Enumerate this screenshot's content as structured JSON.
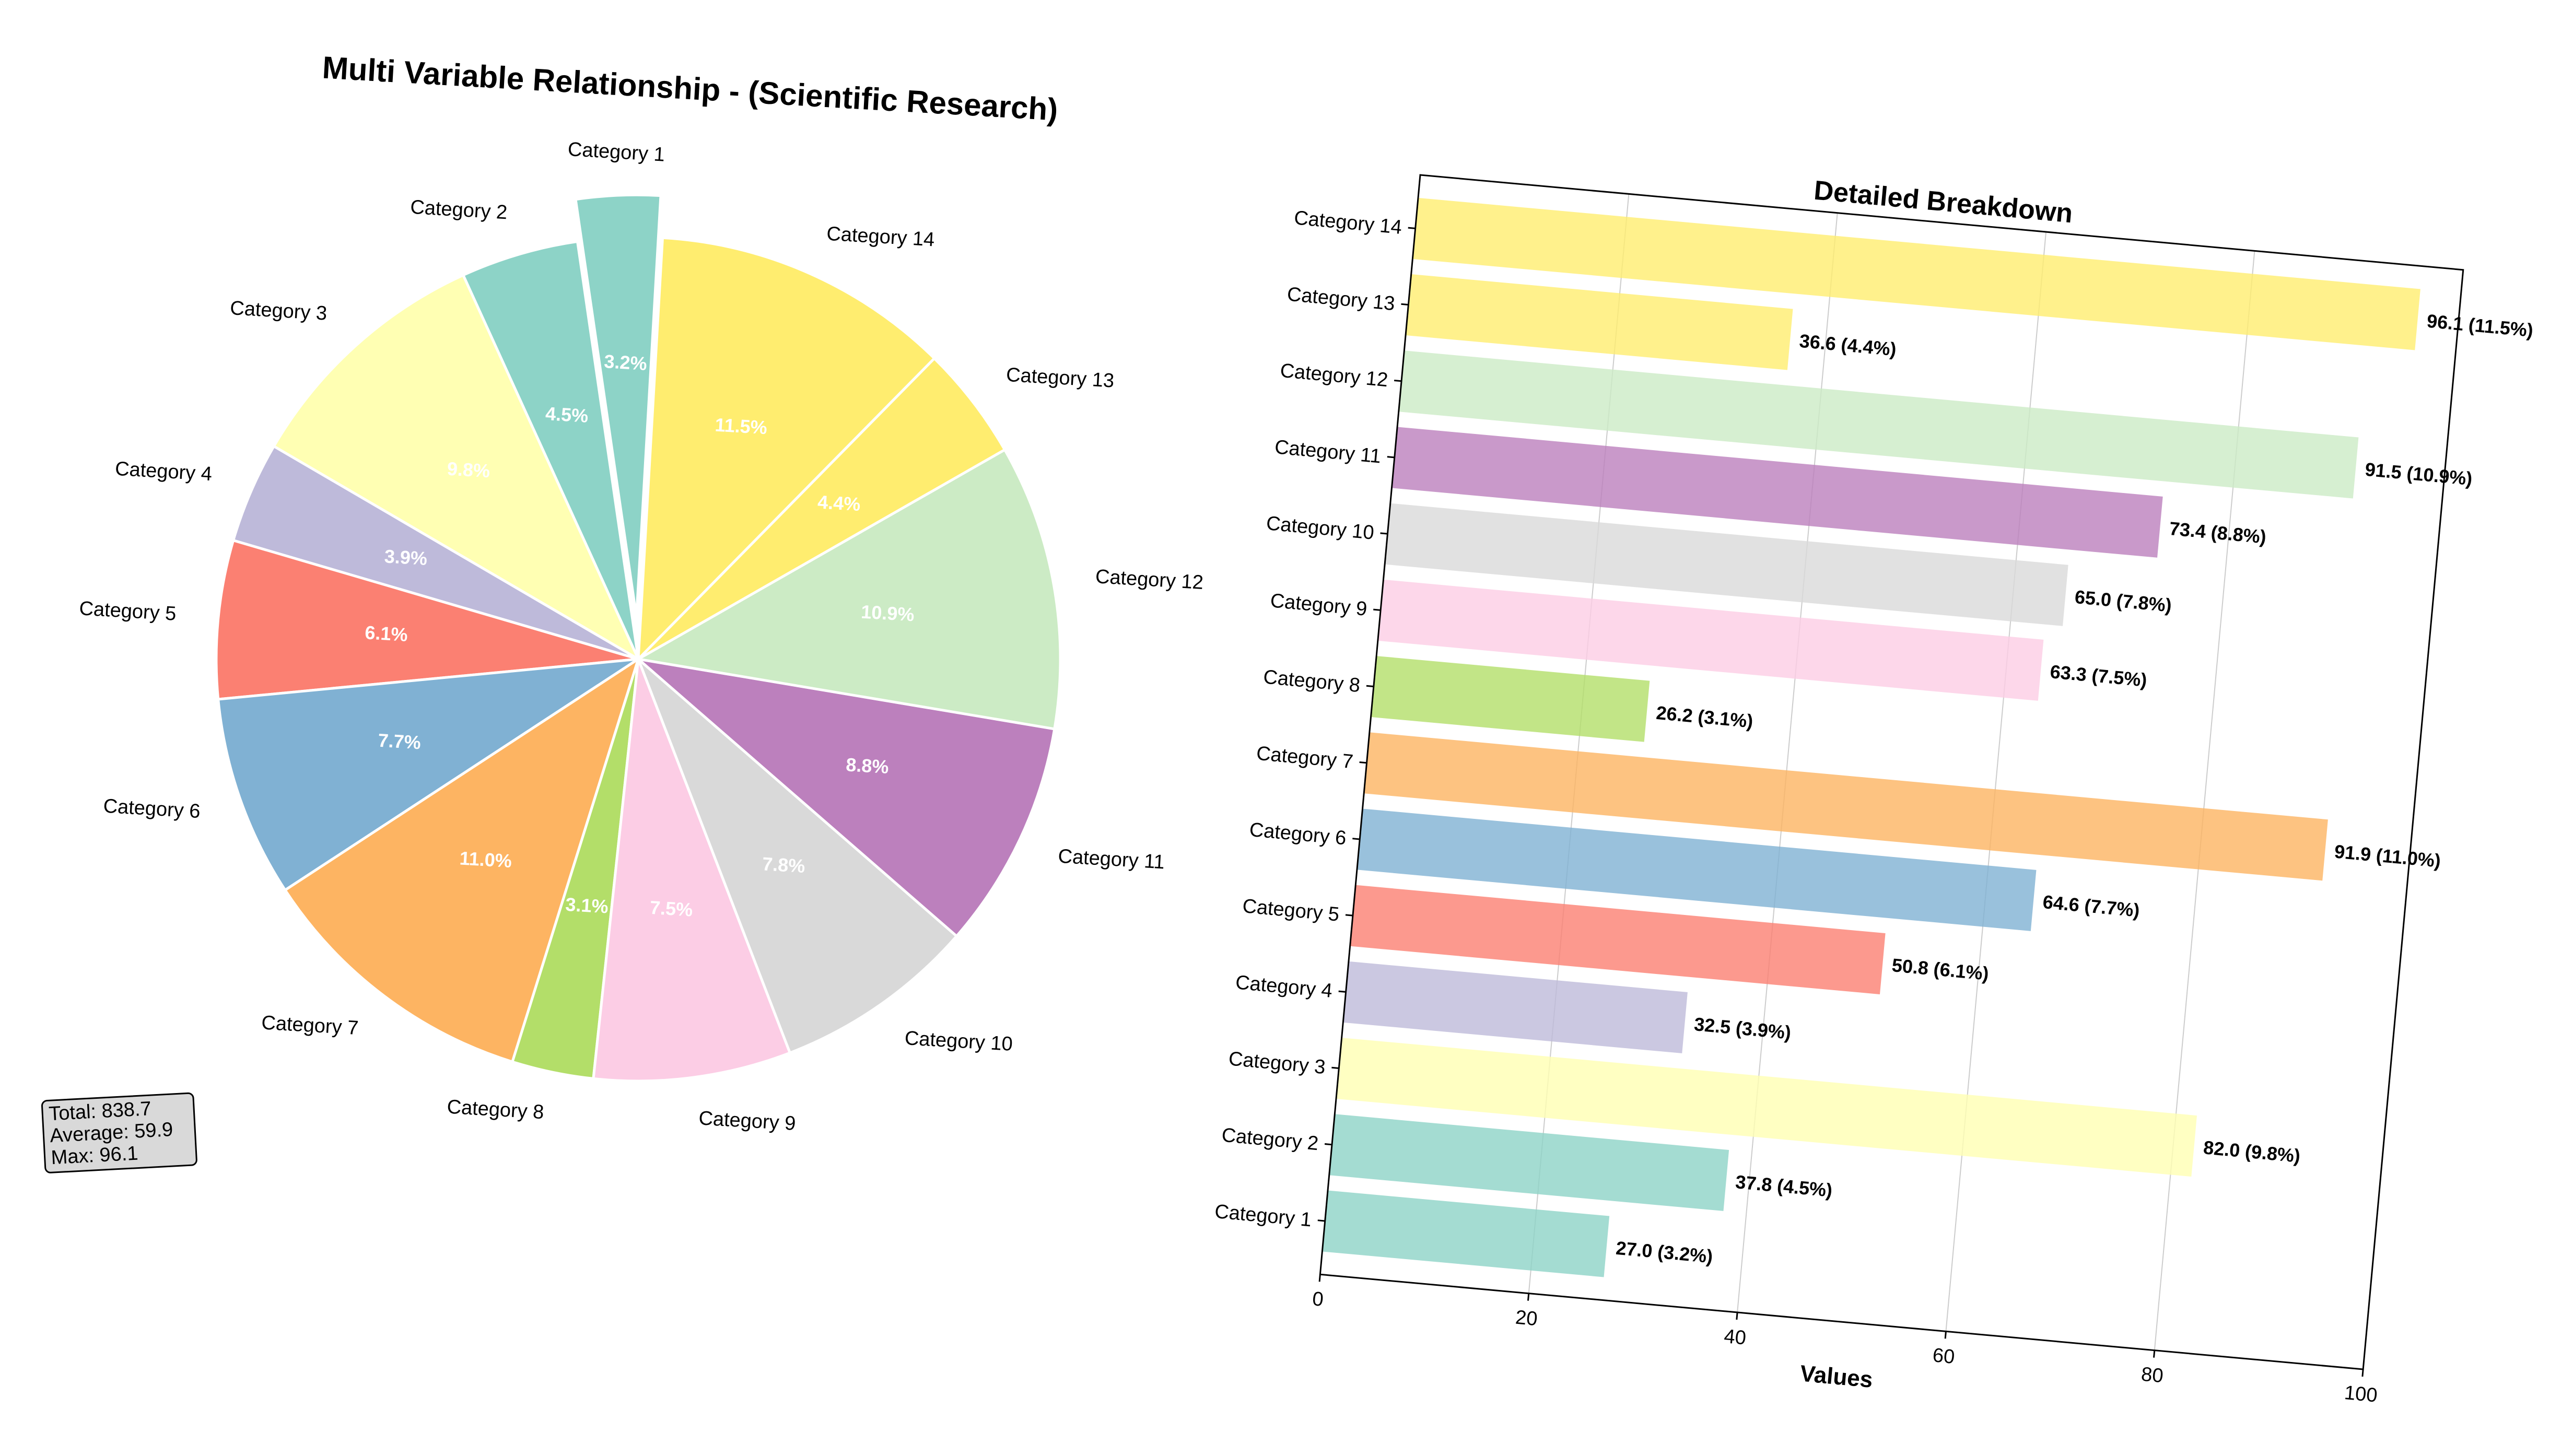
{
  "chart_data": [
    {
      "type": "pie",
      "title": "Multi Variable Relationship - (Scientific Research)",
      "categories": [
        "Category 1",
        "Category 2",
        "Category 3",
        "Category 4",
        "Category 5",
        "Category 6",
        "Category 7",
        "Category 8",
        "Category 9",
        "Category 10",
        "Category 11",
        "Category 12",
        "Category 13",
        "Category 14"
      ],
      "values": [
        27.0,
        37.8,
        82.0,
        32.5,
        50.8,
        64.6,
        91.9,
        26.2,
        63.3,
        65.0,
        73.4,
        91.5,
        36.6,
        96.1
      ],
      "percent_labels": [
        "3.2%",
        "4.5%",
        "9.8%",
        "3.9%",
        "6.1%",
        "7.7%",
        "11.0%",
        "3.1%",
        "7.5%",
        "7.8%",
        "8.8%",
        "10.9%",
        "4.4%",
        "11.5%"
      ],
      "colors": [
        "#8dd3c7",
        "#8dd3c7",
        "#ffffb3",
        "#bebada",
        "#fb8072",
        "#80b1d3",
        "#fdb462",
        "#b3de69",
        "#fccde5",
        "#d9d9d9",
        "#bc80bd",
        "#ccebc5",
        "#ffed6f",
        "#ffed6f"
      ],
      "exploded": [
        "Category 1"
      ],
      "start_angle_deg": 90,
      "direction": "counterclockwise",
      "stats_box": [
        "Total: 838.7",
        "Average: 59.9",
        "Max: 96.1"
      ]
    },
    {
      "type": "bar",
      "orientation": "horizontal",
      "title": "Detailed Breakdown",
      "xlabel": "Values",
      "xlim": [
        0,
        100
      ],
      "xticks": [
        "0",
        "20",
        "40",
        "60",
        "80",
        "100"
      ],
      "grid": "vertical",
      "categories": [
        "Category 1",
        "Category 2",
        "Category 3",
        "Category 4",
        "Category 5",
        "Category 6",
        "Category 7",
        "Category 8",
        "Category 9",
        "Category 10",
        "Category 11",
        "Category 12",
        "Category 13",
        "Category 14"
      ],
      "values": [
        27.0,
        37.8,
        82.0,
        32.5,
        50.8,
        64.6,
        91.9,
        26.2,
        63.3,
        65.0,
        73.4,
        91.5,
        36.6,
        96.1
      ],
      "value_labels": [
        "27.0 (3.2%)",
        "37.8 (4.5%)",
        "82.0 (9.8%)",
        "32.5 (3.9%)",
        "50.8 (6.1%)",
        "64.6 (7.7%)",
        "91.9 (11.0%)",
        "26.2 (3.1%)",
        "63.3 (7.5%)",
        "65.0 (7.8%)",
        "73.4 (8.8%)",
        "91.5 (10.9%)",
        "36.6 (4.4%)",
        "96.1 (11.5%)"
      ],
      "colors": [
        "#8dd3c7",
        "#8dd3c7",
        "#ffffb3",
        "#bebada",
        "#fb8072",
        "#80b1d3",
        "#fdb462",
        "#b3de69",
        "#fccde5",
        "#d9d9d9",
        "#bc80bd",
        "#ccebc5",
        "#ffed6f",
        "#ffed6f"
      ]
    }
  ]
}
